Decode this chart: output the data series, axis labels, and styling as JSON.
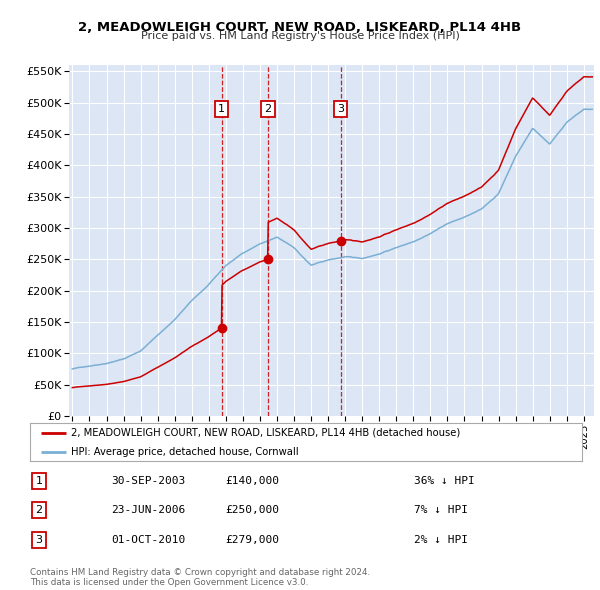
{
  "title": "2, MEADOWLEIGH COURT, NEW ROAD, LISKEARD, PL14 4HB",
  "subtitle": "Price paid vs. HM Land Registry's House Price Index (HPI)",
  "plot_bg_color": "#dce6f5",
  "grid_color": "#ffffff",
  "sale_dates_decimal": [
    2003.747,
    2006.472,
    2010.748
  ],
  "sale_prices": [
    140000,
    250000,
    279000
  ],
  "sale_labels": [
    "1",
    "2",
    "3"
  ],
  "sale_date_strings": [
    "30-SEP-2003",
    "23-JUN-2006",
    "01-OCT-2010"
  ],
  "sale_price_strings": [
    "£140,000",
    "£250,000",
    "£279,000"
  ],
  "sale_pct_strings": [
    "36% ↓ HPI",
    "7% ↓ HPI",
    "2% ↓ HPI"
  ],
  "legend_line1": "2, MEADOWLEIGH COURT, NEW ROAD, LISKEARD, PL14 4HB (detached house)",
  "legend_line2": "HPI: Average price, detached house, Cornwall",
  "footer1": "Contains HM Land Registry data © Crown copyright and database right 2024.",
  "footer2": "This data is licensed under the Open Government Licence v3.0.",
  "red_color": "#cc0000",
  "blue_color": "#7bafd4",
  "hpi_key_years": [
    1995,
    1996,
    1997,
    1998,
    1999,
    2000,
    2001,
    2002,
    2003,
    2004,
    2005,
    2006,
    2007,
    2008,
    2009,
    2010,
    2011,
    2012,
    2013,
    2014,
    2015,
    2016,
    2017,
    2018,
    2019,
    2020,
    2021,
    2022,
    2023,
    2024,
    2025
  ],
  "hpi_key_vals": [
    75000,
    80000,
    85000,
    92000,
    105000,
    130000,
    155000,
    185000,
    210000,
    240000,
    260000,
    275000,
    285000,
    268000,
    240000,
    248000,
    253000,
    250000,
    258000,
    268000,
    278000,
    292000,
    308000,
    318000,
    330000,
    355000,
    415000,
    460000,
    435000,
    470000,
    490000
  ]
}
